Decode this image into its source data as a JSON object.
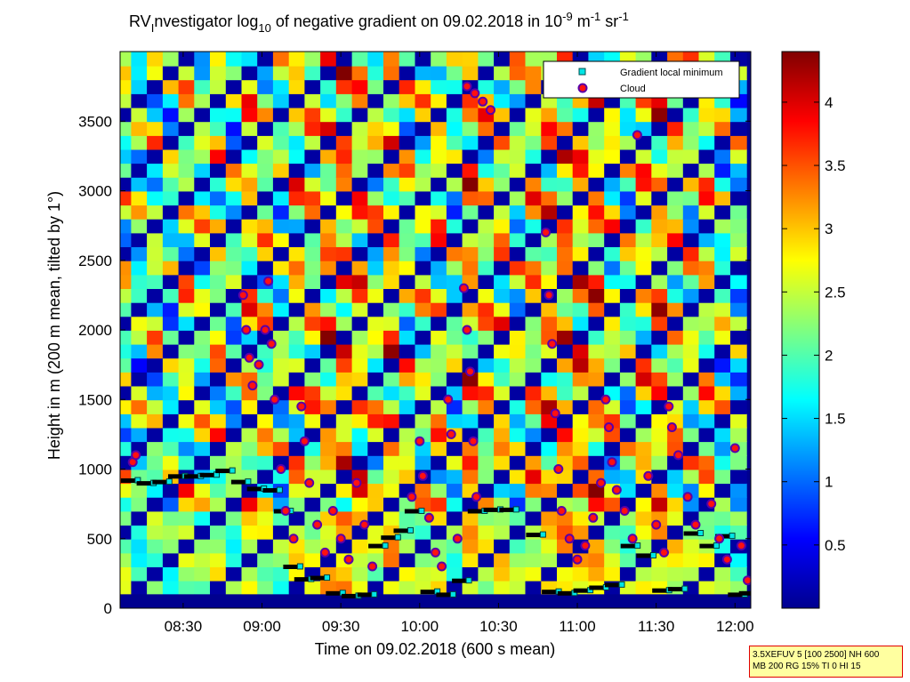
{
  "chart_data": {
    "type": "heatmap",
    "title_parts": {
      "t1": "RV",
      "t2": "I",
      "t3": "nvestigator log",
      "t4": "10",
      "t5": " of negative gradient on 09.02.2018 in 10",
      "t6": "-9",
      "t7": " m",
      "t8": "-1",
      "t9": " sr",
      "t10": "-1"
    },
    "xlabel": "Time on 09.02.2018 (600 s mean)",
    "ylabel": "Height in m (200 m mean, tilted by 1°)",
    "xlim": [
      8.1,
      12.1
    ],
    "ylim": [
      0,
      4000
    ],
    "xticks": [
      {
        "value": 8.5,
        "label": "08:30"
      },
      {
        "value": 9.0,
        "label": "09:00"
      },
      {
        "value": 9.5,
        "label": "09:30"
      },
      {
        "value": 10.0,
        "label": "10:00"
      },
      {
        "value": 10.5,
        "label": "10:30"
      },
      {
        "value": 11.0,
        "label": "11:00"
      },
      {
        "value": 11.5,
        "label": "11:30"
      },
      {
        "value": 12.0,
        "label": "12:00"
      }
    ],
    "yticks": [
      {
        "value": 0,
        "label": "0"
      },
      {
        "value": 500,
        "label": "500"
      },
      {
        "value": 1000,
        "label": "1000"
      },
      {
        "value": 1500,
        "label": "1500"
      },
      {
        "value": 2000,
        "label": "2000"
      },
      {
        "value": 2500,
        "label": "2500"
      },
      {
        "value": 3000,
        "label": "3000"
      },
      {
        "value": 3500,
        "label": "3500"
      }
    ],
    "colorbar": {
      "range": [
        0,
        4.4
      ],
      "ticks": [
        {
          "value": 0.5,
          "label": "0.5"
        },
        {
          "value": 1,
          "label": "1"
        },
        {
          "value": 1.5,
          "label": "1.5"
        },
        {
          "value": 2,
          "label": "2"
        },
        {
          "value": 2.5,
          "label": "2.5"
        },
        {
          "value": 3,
          "label": "3"
        },
        {
          "value": 3.5,
          "label": "3.5"
        },
        {
          "value": 4,
          "label": "4"
        }
      ]
    },
    "legend": {
      "placement": "top-right",
      "entries": [
        {
          "label": "Gradient local minimum",
          "marker": "square",
          "color": "#00e5e5"
        },
        {
          "label": "Cloud",
          "marker": "circle",
          "color": "#ff1010"
        }
      ]
    },
    "columns": [
      {
        "t": 8.12,
        "v": 2.3
      },
      {
        "t": 8.22,
        "v": 1.9
      },
      {
        "t": 8.32,
        "v": 2.2
      },
      {
        "t": 8.42,
        "v": 2.0
      },
      {
        "t": 8.52,
        "v": 2.4
      },
      {
        "t": 8.62,
        "v": 2.1
      },
      {
        "t": 8.72,
        "v": 2.5
      },
      {
        "t": 8.82,
        "v": 2.0
      },
      {
        "t": 8.92,
        "v": 2.6
      },
      {
        "t": 9.02,
        "v": 2.4
      },
      {
        "t": 9.12,
        "v": 2.1
      },
      {
        "t": 9.22,
        "v": 2.6
      },
      {
        "t": 9.32,
        "v": 2.5
      },
      {
        "t": 9.42,
        "v": 2.9
      },
      {
        "t": 9.52,
        "v": 3.1
      },
      {
        "t": 9.62,
        "v": 2.8
      },
      {
        "t": 9.72,
        "v": 2.3
      },
      {
        "t": 9.82,
        "v": 3.0
      },
      {
        "t": 9.92,
        "v": 2.4
      },
      {
        "t": 10.02,
        "v": 2.2
      },
      {
        "t": 10.12,
        "v": 2.6
      },
      {
        "t": 10.22,
        "v": 2.1
      },
      {
        "t": 10.32,
        "v": 2.9
      },
      {
        "t": 10.42,
        "v": 2.5
      },
      {
        "t": 10.52,
        "v": 2.7
      },
      {
        "t": 10.62,
        "v": 2.2
      },
      {
        "t": 10.72,
        "v": 2.6
      },
      {
        "t": 10.82,
        "v": 2.8
      },
      {
        "t": 10.92,
        "v": 3.1
      },
      {
        "t": 11.02,
        "v": 3.0
      },
      {
        "t": 11.12,
        "v": 2.9
      },
      {
        "t": 11.22,
        "v": 2.4
      },
      {
        "t": 11.32,
        "v": 2.2
      },
      {
        "t": 11.42,
        "v": 2.6
      },
      {
        "t": 11.52,
        "v": 2.9
      },
      {
        "t": 11.62,
        "v": 2.7
      },
      {
        "t": 11.72,
        "v": 2.3
      },
      {
        "t": 11.82,
        "v": 2.5
      },
      {
        "t": 11.92,
        "v": 2.1
      },
      {
        "t": 12.02,
        "v": 2.0
      }
    ],
    "layer_minimums": [
      {
        "t": 8.15,
        "h": 920
      },
      {
        "t": 8.25,
        "h": 900
      },
      {
        "t": 8.35,
        "h": 910
      },
      {
        "t": 8.45,
        "h": 950
      },
      {
        "t": 8.55,
        "h": 950
      },
      {
        "t": 8.65,
        "h": 960
      },
      {
        "t": 8.75,
        "h": 990
      },
      {
        "t": 8.85,
        "h": 910
      },
      {
        "t": 8.95,
        "h": 860
      },
      {
        "t": 9.05,
        "h": 850
      },
      {
        "t": 9.12,
        "h": 700
      },
      {
        "t": 9.18,
        "h": 300
      },
      {
        "t": 9.25,
        "h": 210
      },
      {
        "t": 9.35,
        "h": 220
      },
      {
        "t": 9.45,
        "h": 110
      },
      {
        "t": 9.55,
        "h": 90
      },
      {
        "t": 9.65,
        "h": 100
      },
      {
        "t": 9.72,
        "h": 450
      },
      {
        "t": 9.8,
        "h": 510
      },
      {
        "t": 9.88,
        "h": 560
      },
      {
        "t": 9.95,
        "h": 700
      },
      {
        "t": 10.05,
        "h": 120
      },
      {
        "t": 10.15,
        "h": 100
      },
      {
        "t": 10.25,
        "h": 200
      },
      {
        "t": 10.35,
        "h": 700
      },
      {
        "t": 10.45,
        "h": 710
      },
      {
        "t": 10.55,
        "h": 710
      },
      {
        "t": 10.72,
        "h": 530
      },
      {
        "t": 10.82,
        "h": 120
      },
      {
        "t": 10.92,
        "h": 110
      },
      {
        "t": 11.02,
        "h": 130
      },
      {
        "t": 11.12,
        "h": 150
      },
      {
        "t": 11.22,
        "h": 170
      },
      {
        "t": 11.32,
        "h": 450
      },
      {
        "t": 11.42,
        "h": 380
      },
      {
        "t": 11.52,
        "h": 130
      },
      {
        "t": 11.62,
        "h": 140
      },
      {
        "t": 11.72,
        "h": 540
      },
      {
        "t": 11.82,
        "h": 450
      },
      {
        "t": 11.92,
        "h": 520
      },
      {
        "t": 12.0,
        "h": 100
      },
      {
        "t": 12.07,
        "h": 110
      }
    ],
    "cloud_points": [
      {
        "t": 8.18,
        "h": 1050
      },
      {
        "t": 8.2,
        "h": 1100
      },
      {
        "t": 8.88,
        "h": 2250
      },
      {
        "t": 8.9,
        "h": 2000
      },
      {
        "t": 8.92,
        "h": 1800
      },
      {
        "t": 8.94,
        "h": 1600
      },
      {
        "t": 8.98,
        "h": 1750
      },
      {
        "t": 9.02,
        "h": 2000
      },
      {
        "t": 9.04,
        "h": 2350
      },
      {
        "t": 9.06,
        "h": 1900
      },
      {
        "t": 9.08,
        "h": 1500
      },
      {
        "t": 9.12,
        "h": 1000
      },
      {
        "t": 9.15,
        "h": 700
      },
      {
        "t": 9.2,
        "h": 500
      },
      {
        "t": 9.25,
        "h": 1450
      },
      {
        "t": 9.27,
        "h": 1200
      },
      {
        "t": 9.3,
        "h": 900
      },
      {
        "t": 9.35,
        "h": 600
      },
      {
        "t": 9.4,
        "h": 400
      },
      {
        "t": 9.45,
        "h": 700
      },
      {
        "t": 9.5,
        "h": 500
      },
      {
        "t": 9.55,
        "h": 350
      },
      {
        "t": 9.6,
        "h": 900
      },
      {
        "t": 9.65,
        "h": 600
      },
      {
        "t": 9.7,
        "h": 300
      },
      {
        "t": 9.95,
        "h": 800
      },
      {
        "t": 10.0,
        "h": 1200
      },
      {
        "t": 10.02,
        "h": 950
      },
      {
        "t": 10.06,
        "h": 650
      },
      {
        "t": 10.1,
        "h": 400
      },
      {
        "t": 10.14,
        "h": 300
      },
      {
        "t": 10.18,
        "h": 1500
      },
      {
        "t": 10.2,
        "h": 1250
      },
      {
        "t": 10.24,
        "h": 500
      },
      {
        "t": 10.28,
        "h": 2300
      },
      {
        "t": 10.3,
        "h": 2000
      },
      {
        "t": 10.32,
        "h": 1700
      },
      {
        "t": 10.34,
        "h": 1200
      },
      {
        "t": 10.36,
        "h": 800
      },
      {
        "t": 10.3,
        "h": 3750
      },
      {
        "t": 10.35,
        "h": 3700
      },
      {
        "t": 10.4,
        "h": 3640
      },
      {
        "t": 10.45,
        "h": 3580
      },
      {
        "t": 10.8,
        "h": 2700
      },
      {
        "t": 10.82,
        "h": 2250
      },
      {
        "t": 10.84,
        "h": 1900
      },
      {
        "t": 10.86,
        "h": 1400
      },
      {
        "t": 10.88,
        "h": 1000
      },
      {
        "t": 10.9,
        "h": 700
      },
      {
        "t": 10.95,
        "h": 500
      },
      {
        "t": 11.0,
        "h": 350
      },
      {
        "t": 11.05,
        "h": 450
      },
      {
        "t": 11.1,
        "h": 650
      },
      {
        "t": 11.15,
        "h": 900
      },
      {
        "t": 11.18,
        "h": 1500
      },
      {
        "t": 11.2,
        "h": 1300
      },
      {
        "t": 11.22,
        "h": 1050
      },
      {
        "t": 11.25,
        "h": 850
      },
      {
        "t": 11.3,
        "h": 700
      },
      {
        "t": 11.35,
        "h": 500
      },
      {
        "t": 11.38,
        "h": 3400
      },
      {
        "t": 11.45,
        "h": 950
      },
      {
        "t": 11.5,
        "h": 600
      },
      {
        "t": 11.55,
        "h": 400
      },
      {
        "t": 11.58,
        "h": 1450
      },
      {
        "t": 11.6,
        "h": 1300
      },
      {
        "t": 11.64,
        "h": 1100
      },
      {
        "t": 11.7,
        "h": 800
      },
      {
        "t": 11.75,
        "h": 600
      },
      {
        "t": 11.85,
        "h": 750
      },
      {
        "t": 11.9,
        "h": 500
      },
      {
        "t": 11.95,
        "h": 350
      },
      {
        "t": 12.0,
        "h": 1150
      },
      {
        "t": 12.04,
        "h": 450
      },
      {
        "t": 12.08,
        "h": 200
      }
    ]
  },
  "info_box": {
    "line1": "3.5XEFUV 5 [100 2500] NH 600",
    "line2": "MB 200 RG 15% TI 0 HI 15"
  }
}
